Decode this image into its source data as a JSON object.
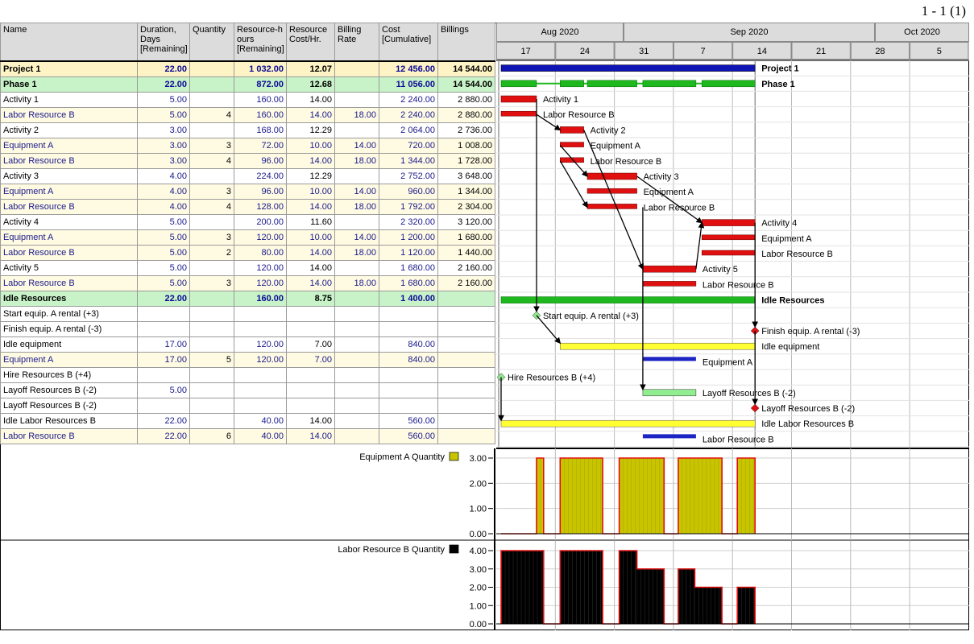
{
  "page_number": "1 - 1 (1)",
  "columns": [
    "Name",
    "Duration, Days [Remaining]",
    "Quantity",
    "Resource-h ours [Remaining]",
    "Resource Cost/Hr.",
    "Billing Rate",
    "Cost [Cumulative]",
    "Billings"
  ],
  "column_header_lines": [
    [
      "Name"
    ],
    [
      "Duration,",
      "Days",
      "[Remaining]"
    ],
    [
      "Quantity"
    ],
    [
      "Resource-h",
      "ours",
      "[Remaining]"
    ],
    [
      "Resource",
      "Cost/Hr."
    ],
    [
      "Billing",
      "Rate"
    ],
    [
      "Cost",
      "[Cumulative]"
    ],
    [
      "Billings"
    ]
  ],
  "rows": [
    {
      "type": "proj",
      "name": "Project 1",
      "duration": "22.00",
      "quantity": "",
      "hours": "1 032.00",
      "cost_hr": "12.07",
      "billing_rate": "",
      "cost": "12 456.00",
      "billings": "14 544.00"
    },
    {
      "type": "phase",
      "name": "Phase 1",
      "duration": "22.00",
      "quantity": "",
      "hours": "872.00",
      "cost_hr": "12.68",
      "billing_rate": "",
      "cost": "11 056.00",
      "billings": "14 544.00"
    },
    {
      "type": "act",
      "name": "Activity 1",
      "duration": "5.00",
      "quantity": "",
      "hours": "160.00",
      "cost_hr": "14.00",
      "billing_rate": "",
      "cost": "2 240.00",
      "billings": "2 880.00"
    },
    {
      "type": "res",
      "name": "Labor Resource B",
      "duration": "5.00",
      "quantity": "4",
      "hours": "160.00",
      "cost_hr": "14.00",
      "billing_rate": "18.00",
      "cost": "2 240.00",
      "billings": "2 880.00"
    },
    {
      "type": "act",
      "name": "Activity 2",
      "duration": "3.00",
      "quantity": "",
      "hours": "168.00",
      "cost_hr": "12.29",
      "billing_rate": "",
      "cost": "2 064.00",
      "billings": "2 736.00"
    },
    {
      "type": "res",
      "name": "Equipment  A",
      "duration": "3.00",
      "quantity": "3",
      "hours": "72.00",
      "cost_hr": "10.00",
      "billing_rate": "14.00",
      "cost": "720.00",
      "billings": "1 008.00"
    },
    {
      "type": "res",
      "name": "Labor Resource B",
      "duration": "3.00",
      "quantity": "4",
      "hours": "96.00",
      "cost_hr": "14.00",
      "billing_rate": "18.00",
      "cost": "1 344.00",
      "billings": "1 728.00"
    },
    {
      "type": "act",
      "name": "Activity 3",
      "duration": "4.00",
      "quantity": "",
      "hours": "224.00",
      "cost_hr": "12.29",
      "billing_rate": "",
      "cost": "2 752.00",
      "billings": "3 648.00"
    },
    {
      "type": "res",
      "name": "Equipment  A",
      "duration": "4.00",
      "quantity": "3",
      "hours": "96.00",
      "cost_hr": "10.00",
      "billing_rate": "14.00",
      "cost": "960.00",
      "billings": "1 344.00"
    },
    {
      "type": "res",
      "name": "Labor Resource B",
      "duration": "4.00",
      "quantity": "4",
      "hours": "128.00",
      "cost_hr": "14.00",
      "billing_rate": "18.00",
      "cost": "1 792.00",
      "billings": "2 304.00"
    },
    {
      "type": "act",
      "name": "Activity 4",
      "duration": "5.00",
      "quantity": "",
      "hours": "200.00",
      "cost_hr": "11.60",
      "billing_rate": "",
      "cost": "2 320.00",
      "billings": "3 120.00"
    },
    {
      "type": "res",
      "name": "Equipment  A",
      "duration": "5.00",
      "quantity": "3",
      "hours": "120.00",
      "cost_hr": "10.00",
      "billing_rate": "14.00",
      "cost": "1 200.00",
      "billings": "1 680.00"
    },
    {
      "type": "res",
      "name": "Labor Resource B",
      "duration": "5.00",
      "quantity": "2",
      "hours": "80.00",
      "cost_hr": "14.00",
      "billing_rate": "18.00",
      "cost": "1 120.00",
      "billings": "1 440.00"
    },
    {
      "type": "act",
      "name": "Activity 5",
      "duration": "5.00",
      "quantity": "",
      "hours": "120.00",
      "cost_hr": "14.00",
      "billing_rate": "",
      "cost": "1 680.00",
      "billings": "2 160.00"
    },
    {
      "type": "res",
      "name": "Labor Resource B",
      "duration": "5.00",
      "quantity": "3",
      "hours": "120.00",
      "cost_hr": "14.00",
      "billing_rate": "18.00",
      "cost": "1 680.00",
      "billings": "2 160.00"
    },
    {
      "type": "phase",
      "name": "Idle Resources",
      "duration": "22.00",
      "quantity": "",
      "hours": "160.00",
      "cost_hr": "8.75",
      "billing_rate": "",
      "cost": "1 400.00",
      "billings": ""
    },
    {
      "type": "act",
      "name": "Start equip. A rental (+3)",
      "duration": "",
      "quantity": "",
      "hours": "",
      "cost_hr": "",
      "billing_rate": "",
      "cost": "",
      "billings": ""
    },
    {
      "type": "act",
      "name": "Finish equip. A rental (-3)",
      "duration": "",
      "quantity": "",
      "hours": "",
      "cost_hr": "",
      "billing_rate": "",
      "cost": "",
      "billings": ""
    },
    {
      "type": "act",
      "name": "Idle equipment",
      "duration": "17.00",
      "quantity": "",
      "hours": "120.00",
      "cost_hr": "7.00",
      "billing_rate": "",
      "cost": "840.00",
      "billings": ""
    },
    {
      "type": "res",
      "name": "Equipment  A",
      "duration": "17.00",
      "quantity": "5",
      "hours": "120.00",
      "cost_hr": "7.00",
      "billing_rate": "",
      "cost": "840.00",
      "billings": ""
    },
    {
      "type": "act",
      "name": "Hire Resources B (+4)",
      "duration": "",
      "quantity": "",
      "hours": "",
      "cost_hr": "",
      "billing_rate": "",
      "cost": "",
      "billings": ""
    },
    {
      "type": "act",
      "name": "Layoff Resources B (-2)",
      "duration": "5.00",
      "quantity": "",
      "hours": "",
      "cost_hr": "",
      "billing_rate": "",
      "cost": "",
      "billings": ""
    },
    {
      "type": "act",
      "name": "Layoff Resources B (-2)",
      "duration": "",
      "quantity": "",
      "hours": "",
      "cost_hr": "",
      "billing_rate": "",
      "cost": "",
      "billings": ""
    },
    {
      "type": "act",
      "name": "Idle Labor Resources B",
      "duration": "22.00",
      "quantity": "",
      "hours": "40.00",
      "cost_hr": "14.00",
      "billing_rate": "",
      "cost": "560.00",
      "billings": ""
    },
    {
      "type": "res",
      "name": "Labor Resource B",
      "duration": "22.00",
      "quantity": "6",
      "hours": "40.00",
      "cost_hr": "14.00",
      "billing_rate": "",
      "cost": "560.00",
      "billings": ""
    }
  ],
  "timescale": {
    "months": [
      {
        "label": "Aug 2020",
        "from": 0,
        "to": 2
      },
      {
        "label": "Sep 2020",
        "from": 2,
        "to": 6
      },
      {
        "label": "Oct 2020",
        "from": 6,
        "to": 8
      }
    ],
    "weeks": [
      "17",
      "24",
      "31",
      "7",
      "14",
      "21",
      "28",
      "5"
    ]
  },
  "gantt": {
    "colors": {
      "summary_blue": "#0f14b4",
      "phase_green": "#1fb81f",
      "task_red": "#e01010",
      "equip_yellow": "#ffff33",
      "res_blue": "#1c24c4",
      "milestone_green": "#8fe88f",
      "milestone_red": "#e01010",
      "layoff_green": "#90ee90"
    },
    "items": [
      {
        "row": 0,
        "kind": "summary",
        "start": 0,
        "end": 21.5,
        "label": "Project 1",
        "bold": true
      },
      {
        "row": 1,
        "kind": "phase",
        "start": 0,
        "end": 21.5,
        "label": "Phase 1",
        "bold": true
      },
      {
        "row": 2,
        "kind": "task",
        "start": 0,
        "end": 3,
        "label": "Activity 1"
      },
      {
        "row": 3,
        "kind": "restask",
        "start": 0,
        "end": 3,
        "label": "Labor Resource B"
      },
      {
        "row": 4,
        "kind": "task",
        "start": 5,
        "end": 7,
        "label": "Activity 2"
      },
      {
        "row": 5,
        "kind": "restask",
        "start": 5,
        "end": 7,
        "label": "Equipment  A"
      },
      {
        "row": 6,
        "kind": "restask",
        "start": 5,
        "end": 7,
        "label": "Labor Resource B"
      },
      {
        "row": 7,
        "kind": "task",
        "start": 7.3,
        "end": 11.5,
        "label": "Activity 3"
      },
      {
        "row": 8,
        "kind": "restask",
        "start": 7.3,
        "end": 11.5,
        "label": "Equipment  A"
      },
      {
        "row": 9,
        "kind": "restask",
        "start": 7.3,
        "end": 11.5,
        "label": "Labor Resource B"
      },
      {
        "row": 10,
        "kind": "task",
        "start": 17,
        "end": 21.5,
        "label": "Activity 4"
      },
      {
        "row": 11,
        "kind": "restask",
        "start": 17,
        "end": 21.5,
        "label": "Equipment  A"
      },
      {
        "row": 12,
        "kind": "restask",
        "start": 17,
        "end": 21.5,
        "label": "Labor Resource B"
      },
      {
        "row": 13,
        "kind": "task",
        "start": 12,
        "end": 16.5,
        "label": "Activity 5"
      },
      {
        "row": 14,
        "kind": "restask",
        "start": 12,
        "end": 16.5,
        "label": "Labor Resource B"
      },
      {
        "row": 15,
        "kind": "phase_solid",
        "start": 0,
        "end": 21.5,
        "label": "Idle Resources",
        "bold": true
      },
      {
        "row": 16,
        "kind": "milestone_green",
        "start": 3,
        "label": "Start equip. A rental (+3)"
      },
      {
        "row": 17,
        "kind": "milestone_red",
        "start": 21.5,
        "label": "Finish equip. A rental (-3)"
      },
      {
        "row": 18,
        "kind": "equip",
        "start": 5,
        "end": 21.5,
        "label": "Idle equipment"
      },
      {
        "row": 19,
        "kind": "resbar",
        "start": 12,
        "end": 16.5,
        "label": "Equipment  A"
      },
      {
        "row": 20,
        "kind": "milestone_green",
        "start": 0,
        "label": "Hire Resources B (+4)"
      },
      {
        "row": 21,
        "kind": "layoff",
        "start": 12,
        "end": 16.5,
        "label": "Layoff Resources B (-2)"
      },
      {
        "row": 22,
        "kind": "milestone_red",
        "start": 21.5,
        "label": "Layoff Resources B (-2)"
      },
      {
        "row": 23,
        "kind": "equip",
        "start": 0,
        "end": 21.5,
        "label": "Idle Labor Resources B"
      },
      {
        "row": 24,
        "kind": "resbar",
        "start": 12,
        "end": 16.5,
        "label": "Labor Resource B"
      }
    ]
  },
  "histograms": [
    {
      "title": "Equipment  A Quantity",
      "color": "#c8c400",
      "ticks": [
        "3.00",
        "2.00",
        "1.00",
        "0.00"
      ],
      "max": 3,
      "segments": [
        [
          0,
          3,
          0
        ],
        [
          3,
          3.6,
          3
        ],
        [
          3.6,
          5,
          0
        ],
        [
          5,
          8.6,
          3
        ],
        [
          8.6,
          10,
          0
        ],
        [
          10,
          13.8,
          3
        ],
        [
          13.8,
          15,
          0
        ],
        [
          15,
          18.7,
          3
        ],
        [
          18.7,
          20,
          0
        ],
        [
          20,
          21.5,
          3
        ]
      ]
    },
    {
      "title": "Labor Resource B Quantity",
      "color": "#000000",
      "ticks": [
        "4.00",
        "3.00",
        "2.00",
        "1.00",
        "0.00"
      ],
      "max": 4,
      "segments": [
        [
          0,
          3.6,
          4
        ],
        [
          3.6,
          5,
          0
        ],
        [
          5,
          8.6,
          4
        ],
        [
          8.6,
          10,
          0
        ],
        [
          10,
          11.5,
          4
        ],
        [
          11.5,
          13.8,
          3
        ],
        [
          13.8,
          15,
          0
        ],
        [
          15,
          16.4,
          3
        ],
        [
          16.4,
          18.7,
          2
        ],
        [
          18.7,
          20,
          0
        ],
        [
          20,
          21.5,
          2
        ]
      ]
    }
  ]
}
